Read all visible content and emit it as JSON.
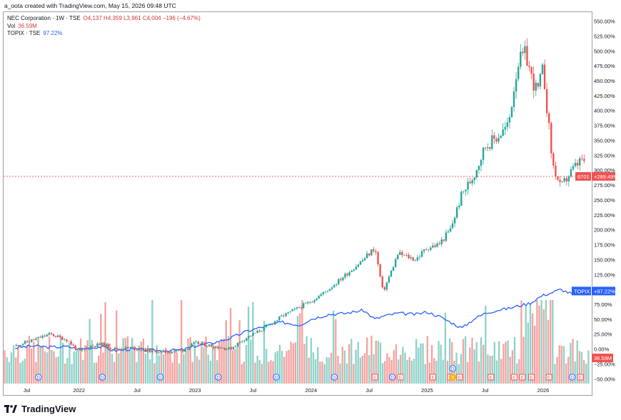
{
  "attribution": "a_oota created with TradingView.com, May 15, 2026 09:48 UTC",
  "legend": {
    "symbol": "NEC Corporation · 1W · TSE",
    "o_label": "O",
    "o": "4,137",
    "h_label": "H",
    "h": "4,359",
    "l_label": "L",
    "l": "3,961",
    "c_label": "C",
    "c": "4,004",
    "change": "−196 (−4.67%)",
    "vol_label": "Vol",
    "vol": "36.59M",
    "compare_symbol": "TOPIX · TSE",
    "compare_value": "97.22%"
  },
  "badges": {
    "ticker": "6701",
    "ticker_value": "+289.49%",
    "topix": "TOPIX",
    "topix_value": "+97.22%",
    "volume": "36.59M"
  },
  "brand": "TradingView",
  "colors": {
    "up": "#26a69a",
    "down": "#ef5350",
    "compare": "#2962ff",
    "vol_up": "#8fd2c9",
    "vol_down": "#f4a3a0"
  },
  "chart_data": {
    "type": "line",
    "x_tick_labels": [
      "Jul",
      "2022",
      "Jul",
      "2023",
      "Jul",
      "2024",
      "Jul",
      "2025",
      "Jul",
      "2026"
    ],
    "y_tick_labels": [
      "550.00%",
      "525.00%",
      "500.00%",
      "475.00%",
      "450.00%",
      "425.00%",
      "400.00%",
      "375.00%",
      "350.00%",
      "325.00%",
      "300.00%",
      "275.00%",
      "250.00%",
      "225.00%",
      "200.00%",
      "175.00%",
      "150.00%",
      "125.00%",
      "100.00%",
      "75.00%",
      "50.00%",
      "25.00%",
      "0.00%",
      "−25.00%",
      "−50.00%"
    ],
    "ylim": [
      -58,
      565
    ],
    "x": [
      2021.45,
      2021.6,
      2021.75,
      2021.9,
      2022.0,
      2022.1,
      2022.2,
      2022.3,
      2022.45,
      2022.6,
      2022.75,
      2022.9,
      2023.0,
      2023.15,
      2023.3,
      2023.45,
      2023.6,
      2023.75,
      2023.9,
      2024.0,
      2024.15,
      2024.3,
      2024.45,
      2024.55,
      2024.62,
      2024.75,
      2024.9,
      2025.0,
      2025.1,
      2025.2,
      2025.3,
      2025.4,
      2025.5,
      2025.6,
      2025.7,
      2025.78,
      2025.85,
      2025.9,
      2025.95,
      2026.0,
      2026.08,
      2026.15,
      2026.25,
      2026.34,
      2026.37
    ],
    "series": [
      {
        "symbol": "6701",
        "values": [
          5,
          15,
          25,
          15,
          -5,
          5,
          8,
          0,
          2,
          -3,
          -5,
          -2,
          10,
          5,
          0,
          20,
          35,
          55,
          70,
          80,
          100,
          125,
          150,
          170,
          95,
          160,
          150,
          170,
          175,
          200,
          260,
          290,
          340,
          355,
          375,
          480,
          495,
          455,
          430,
          470,
          310,
          270,
          300,
          320,
          289.5
        ]
      },
      {
        "symbol": "TOPIX",
        "values": [
          2,
          5,
          3,
          4,
          0,
          2,
          4,
          -3,
          0,
          -2,
          -3,
          -1,
          5,
          10,
          18,
          30,
          38,
          45,
          40,
          50,
          58,
          60,
          65,
          50,
          55,
          60,
          58,
          62,
          55,
          45,
          35,
          50,
          60,
          65,
          68,
          72,
          75,
          78,
          85,
          90,
          95,
          100,
          92,
          95,
          97.2
        ]
      }
    ],
    "last_volume": "36.59M"
  }
}
